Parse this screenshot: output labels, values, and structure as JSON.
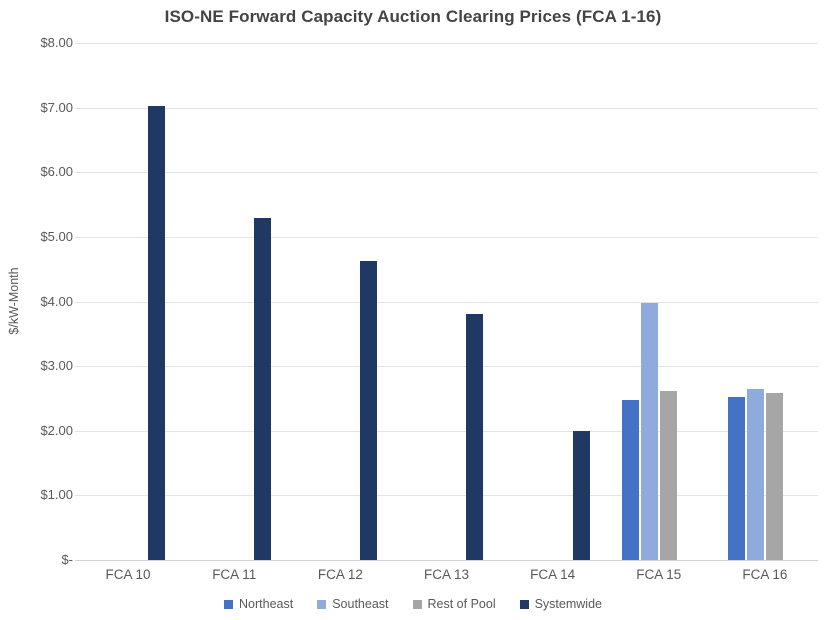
{
  "chart_data": {
    "type": "bar",
    "title": "ISO-NE Forward Capacity Auction Clearing Prices (FCA 1-16)",
    "xlabel": "",
    "ylabel": "$/kW-Month",
    "ylim": [
      0,
      8
    ],
    "grid": true,
    "legend_position": "bottom",
    "y_ticks": [
      {
        "value": 8,
        "label": "$8.00"
      },
      {
        "value": 7,
        "label": "$7.00"
      },
      {
        "value": 6,
        "label": "$6.00"
      },
      {
        "value": 5,
        "label": "$5.00"
      },
      {
        "value": 4,
        "label": "$4.00"
      },
      {
        "value": 3,
        "label": "$3.00"
      },
      {
        "value": 2,
        "label": "$2.00"
      },
      {
        "value": 1,
        "label": "$1.00"
      },
      {
        "value": 0,
        "label": "$-"
      }
    ],
    "categories": [
      "FCA 10",
      "FCA 11",
      "FCA 12",
      "FCA 13",
      "FCA 14",
      "FCA 15",
      "FCA 16"
    ],
    "series": [
      {
        "name": "Northeast",
        "color": "#4472C4",
        "values": [
          null,
          null,
          null,
          null,
          null,
          2.48,
          2.53
        ]
      },
      {
        "name": "Southeast",
        "color": "#8FAADC",
        "values": [
          null,
          null,
          null,
          null,
          null,
          3.98,
          2.64
        ]
      },
      {
        "name": "Rest of Pool",
        "color": "#A6A6A6",
        "values": [
          null,
          null,
          null,
          null,
          null,
          2.61,
          2.59
        ]
      },
      {
        "name": "Systemwide",
        "color": "#1F3864",
        "values": [
          7.03,
          5.3,
          4.63,
          3.8,
          2.0,
          null,
          null
        ]
      }
    ]
  }
}
